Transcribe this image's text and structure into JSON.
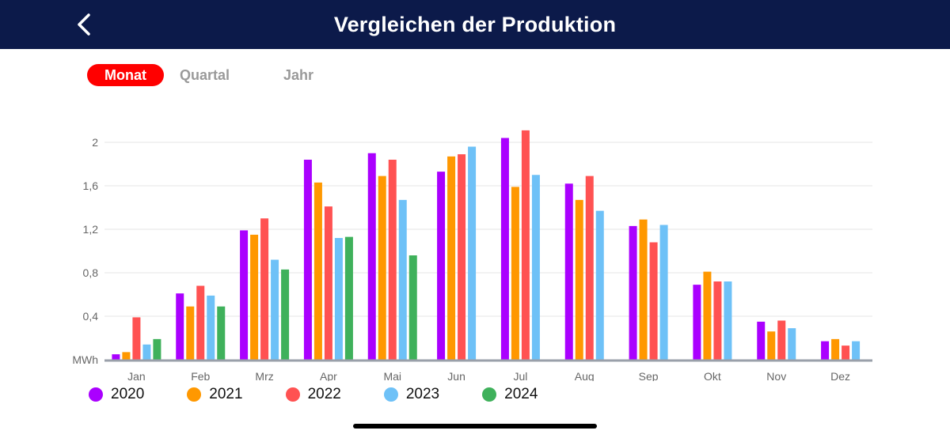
{
  "header": {
    "title": "Vergleichen der Produktion",
    "back_icon": "chevron-left-icon"
  },
  "tabs": [
    {
      "label": "Monat",
      "active": true
    },
    {
      "label": "Quartal",
      "active": false
    },
    {
      "label": "Jahr",
      "active": false
    }
  ],
  "chart_data": {
    "type": "bar",
    "unit": "MWh",
    "categories": [
      "Jan",
      "Feb",
      "Mrz",
      "Apr",
      "Mai",
      "Jun",
      "Jul",
      "Aug",
      "Sep",
      "Okt",
      "Nov",
      "Dez"
    ],
    "y_ticks": [
      "MWh",
      "0,4",
      "0,8",
      "1,2",
      "1,6",
      "2"
    ],
    "ylim": [
      0,
      2.2
    ],
    "grid": true,
    "legend_position": "bottom-left",
    "series": [
      {
        "name": "2020",
        "color": "#aa00ff",
        "values": [
          0.05,
          0.61,
          1.19,
          1.84,
          1.9,
          1.73,
          2.04,
          1.62,
          1.23,
          0.69,
          0.35,
          0.17
        ]
      },
      {
        "name": "2021",
        "color": "#ff9800",
        "values": [
          0.07,
          0.49,
          1.15,
          1.63,
          1.69,
          1.87,
          1.59,
          1.47,
          1.29,
          0.81,
          0.26,
          0.19
        ]
      },
      {
        "name": "2022",
        "color": "#ff5252",
        "values": [
          0.39,
          0.68,
          1.3,
          1.41,
          1.84,
          1.89,
          2.11,
          1.69,
          1.08,
          0.72,
          0.36,
          0.13
        ]
      },
      {
        "name": "2023",
        "color": "#6ec1f7",
        "values": [
          0.14,
          0.59,
          0.92,
          1.12,
          1.47,
          1.96,
          1.7,
          1.37,
          1.24,
          0.72,
          0.29,
          0.17
        ]
      },
      {
        "name": "2024",
        "color": "#3fb15b",
        "values": [
          0.19,
          0.49,
          0.83,
          1.13,
          0.96,
          null,
          null,
          null,
          null,
          null,
          null,
          null
        ]
      }
    ]
  }
}
